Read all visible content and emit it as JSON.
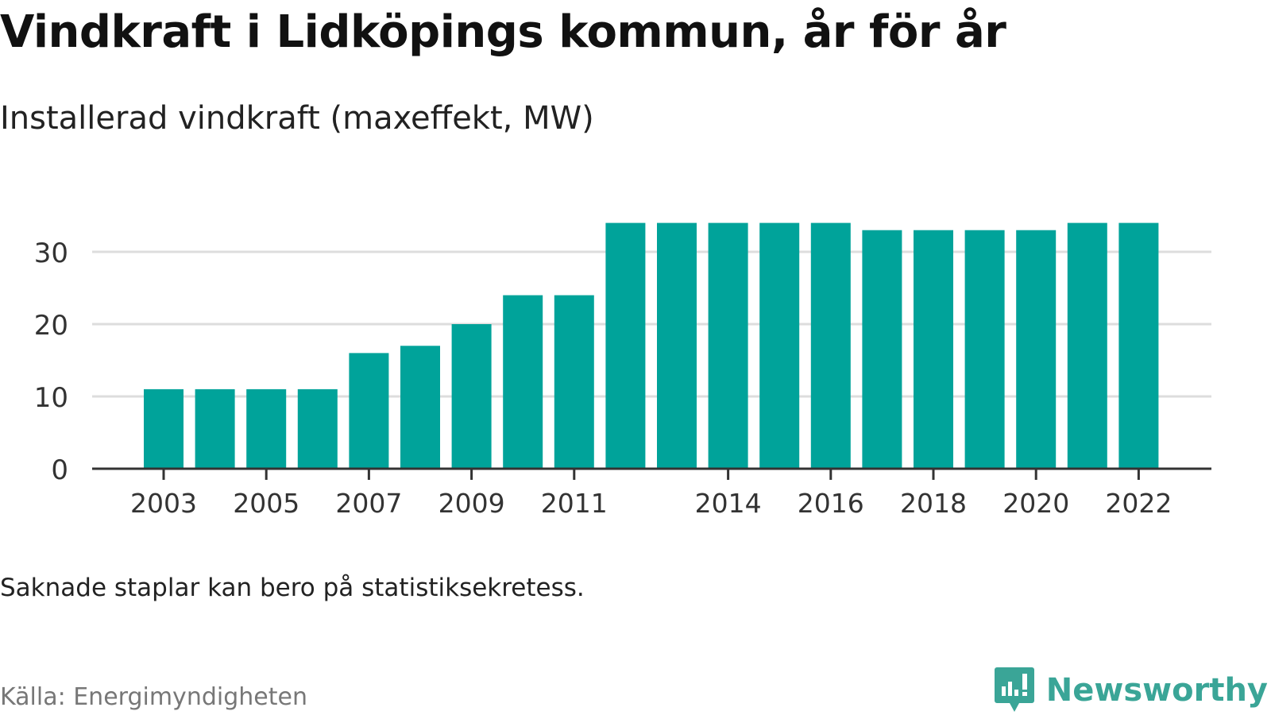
{
  "title": "Vindkraft i Lidköpings kommun, år för år",
  "subtitle": "Installerad vindkraft (maxeffekt, MW)",
  "note": "Saknade staplar kan bero på statistiksekretess.",
  "source": "Källa: Energimyndigheten",
  "brand": {
    "name": "Newsworthy",
    "icon": "newsworthy-logo-icon",
    "color": "#3aa597"
  },
  "colors": {
    "bar": "#00a39a",
    "grid": "#dddddd",
    "axis": "#333333"
  },
  "chart_data": {
    "type": "bar",
    "categories": [
      "2003",
      "2004",
      "2005",
      "2006",
      "2007",
      "2008",
      "2009",
      "2010",
      "2011",
      "2012",
      "2013",
      "2014",
      "2015",
      "2016",
      "2017",
      "2018",
      "2019",
      "2020",
      "2021",
      "2022"
    ],
    "values": [
      11,
      11,
      11,
      11,
      16,
      17,
      20,
      24,
      24,
      34,
      34,
      34,
      34,
      34,
      33,
      33,
      33,
      33,
      34,
      34
    ],
    "x_tick_labels": [
      "2003",
      "2005",
      "2007",
      "2009",
      "2011",
      "2014",
      "2016",
      "2018",
      "2020",
      "2022"
    ],
    "y_ticks": [
      0,
      10,
      20,
      30
    ],
    "ylim": [
      0,
      34
    ],
    "grid": true,
    "xlabel": "",
    "ylabel": ""
  }
}
